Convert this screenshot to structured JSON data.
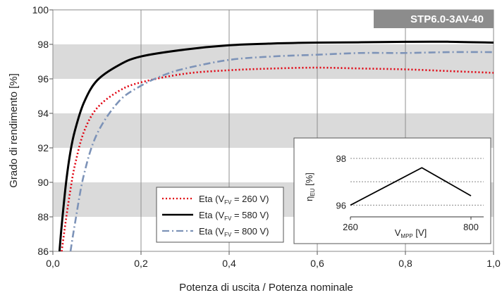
{
  "chart_data": [
    {
      "type": "line",
      "title": "",
      "badge": "STP6.0-3AV-40",
      "xlabel": "Potenza di uscita / Potenza nominale",
      "ylabel": "Grado di rendimento [%]",
      "xlim": [
        0,
        1
      ],
      "ylim": [
        86,
        100
      ],
      "xticks": [
        0,
        0.2,
        0.4,
        0.6,
        0.8,
        1.0
      ],
      "xtick_labels": [
        "0,0",
        "0,2",
        "0,4",
        "0,6",
        "0,8",
        "1,0"
      ],
      "yticks": [
        86,
        88,
        90,
        92,
        94,
        96,
        98,
        100
      ],
      "ytick_labels": [
        "86",
        "88",
        "90",
        "92",
        "94",
        "96",
        "98",
        "100"
      ],
      "grid": "vertical lines and alternating horizontal bands",
      "legend_position": "bottom-left of inset",
      "series": [
        {
          "name": "Eta (VFV = 260 V)",
          "legend": {
            "pre": "Eta (V",
            "sub": "FV",
            "post": " = 260 V)"
          },
          "color": "#e1000f",
          "style": "dotted",
          "x": [
            0.02,
            0.03,
            0.04,
            0.05,
            0.07,
            0.1,
            0.15,
            0.2,
            0.3,
            0.4,
            0.5,
            0.6,
            0.7,
            0.8,
            0.9,
            1.0
          ],
          "y": [
            86.0,
            87.9,
            89.6,
            91.0,
            92.9,
            94.3,
            95.3,
            95.8,
            96.3,
            96.5,
            96.6,
            96.65,
            96.6,
            96.55,
            96.45,
            96.35
          ]
        },
        {
          "name": "Eta (VFV = 580 V)",
          "legend": {
            "pre": "Eta (V",
            "sub": "FV",
            "post": " = 580 V)"
          },
          "color": "#000000",
          "style": "solid",
          "x": [
            0.015,
            0.02,
            0.03,
            0.04,
            0.05,
            0.07,
            0.1,
            0.15,
            0.2,
            0.3,
            0.4,
            0.5,
            0.6,
            0.7,
            0.8,
            0.9,
            1.0
          ],
          "y": [
            86.0,
            87.5,
            90.0,
            91.8,
            93.0,
            94.6,
            95.9,
            96.8,
            97.3,
            97.7,
            97.95,
            98.05,
            98.1,
            98.12,
            98.15,
            98.15,
            98.1
          ]
        },
        {
          "name": "Eta (VFV = 800 V)",
          "legend": {
            "pre": "Eta (V",
            "sub": "FV",
            "post": " = 800 V)"
          },
          "color": "#7d93b8",
          "style": "dashdot",
          "x": [
            0.04,
            0.05,
            0.07,
            0.1,
            0.15,
            0.2,
            0.25,
            0.3,
            0.4,
            0.5,
            0.6,
            0.7,
            0.8,
            0.9,
            1.0
          ],
          "y": [
            86.0,
            87.6,
            90.4,
            92.8,
            94.7,
            95.6,
            96.2,
            96.6,
            97.1,
            97.3,
            97.4,
            97.5,
            97.5,
            97.55,
            97.55
          ]
        }
      ]
    },
    {
      "type": "line",
      "title": "",
      "xlabel": "VMPP [V]",
      "xlabel_parts": {
        "pre": "V",
        "sub": "MPP",
        "post": " [V]"
      },
      "ylabel": "ηEU [%]",
      "ylabel_parts": {
        "pre": "η",
        "sub": "EU",
        "post": " [%]"
      },
      "xlim": [
        260,
        800
      ],
      "ylim": [
        95.5,
        98.3
      ],
      "xticks": [
        260,
        800
      ],
      "xtick_labels": [
        "260",
        "800"
      ],
      "yticks": [
        96,
        98
      ],
      "ytick_labels": [
        "96",
        "98"
      ],
      "grid": "dashed horizontal lines",
      "series": [
        {
          "name": "",
          "color": "#000000",
          "style": "solid",
          "x": [
            260,
            580,
            800
          ],
          "y": [
            96.0,
            97.6,
            96.4
          ]
        }
      ]
    }
  ]
}
